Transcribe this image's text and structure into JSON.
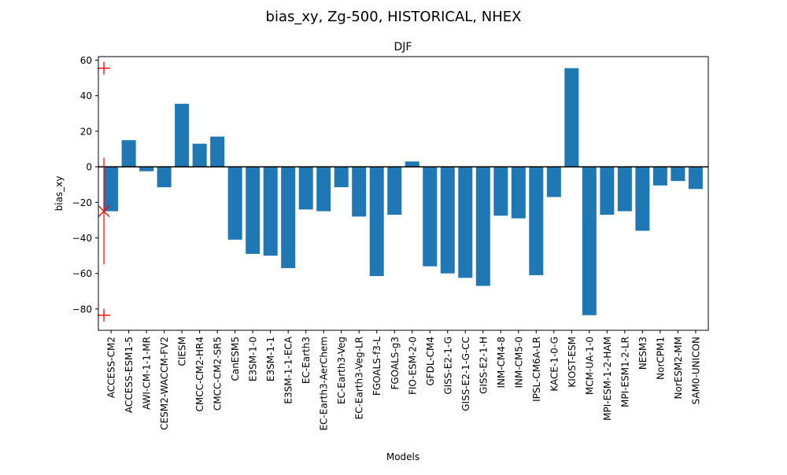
{
  "figure": {
    "suptitle": "bias_xy, Zg-500, HISTORICAL, NHEX"
  },
  "chart_data": {
    "type": "bar",
    "title": "DJF",
    "xlabel": "Models",
    "ylabel": "bias_xy",
    "ylim": [
      -92,
      62
    ],
    "yticks": [
      -80,
      -60,
      -40,
      -20,
      0,
      20,
      40,
      60
    ],
    "grid": false,
    "bar_color": "#1f77b4",
    "zero_line_color": "#000000",
    "categories": [
      "ACCESS-CM2",
      "ACCESS-ESM1-5",
      "AWI-CM-1-1-MR",
      "CESM2-WACCM-FV2",
      "CIESM",
      "CMCC-CM2-HR4",
      "CMCC-CM2-SR5",
      "CanESM5",
      "E3SM-1-0",
      "E3SM-1-1",
      "E3SM-1-1-ECA",
      "EC-Earth3",
      "EC-Earth3-AerChem",
      "EC-Earth3-Veg",
      "EC-Earth3-Veg-LR",
      "FGOALS-f3-L",
      "FGOALS-g3",
      "FIO-ESM-2-0",
      "GFDL-CM4",
      "GISS-E2-1-G",
      "GISS-E2-1-G-CC",
      "GISS-E2-1-H",
      "INM-CM4-8",
      "INM-CM5-0",
      "IPSL-CM6A-LR",
      "KACE-1-0-G",
      "KIOST-ESM",
      "MCM-UA-1-0",
      "MPI-ESM-1-2-HAM",
      "MPI-ESM1-2-LR",
      "NESM3",
      "NorCPM1",
      "NorESM2-MM",
      "SAM0-UNICON"
    ],
    "values": [
      -25,
      15,
      -2.5,
      -11.5,
      35.5,
      13,
      17,
      -41,
      -49,
      -50,
      -57,
      -24,
      -25,
      -11.5,
      -28,
      -61.5,
      -27,
      3,
      -56,
      -60,
      -62.5,
      -67,
      -27.5,
      -29,
      -61,
      -17,
      55.5,
      -83.5,
      -27,
      -25,
      -36,
      -10.5,
      -8,
      -12.5
    ],
    "ensemble_summary": {
      "color": "#ff0000",
      "mean": -25,
      "range_low": -55,
      "range_high": 5,
      "max": 55.5,
      "min": -83.5
    }
  }
}
